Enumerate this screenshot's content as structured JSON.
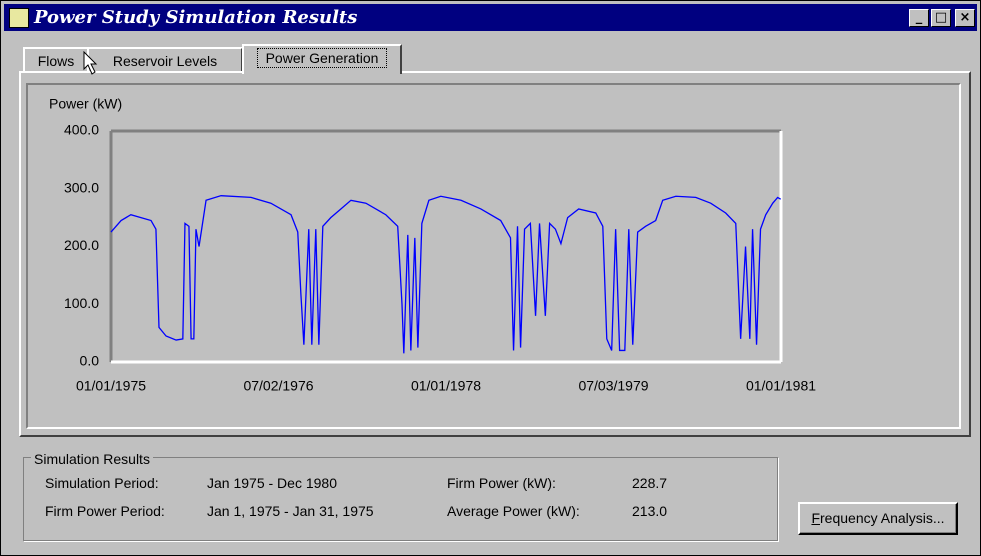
{
  "window": {
    "title": "Power Study Simulation Results"
  },
  "tabs": [
    "Flows",
    "Reservoir Levels",
    "Power Generation"
  ],
  "chart_data": {
    "type": "line",
    "ylabel": "Power (kW)",
    "color": "#0000ff",
    "x": [
      "01/01/1975",
      "02/03/1975",
      "03/07/1975",
      "04/09/1975",
      "05/12/1975",
      "05/28/1975",
      "06/07/1975",
      "06/30/1975",
      "08/02/1975",
      "08/24/1975",
      "08/31/1975",
      "09/13/1975",
      "09/20/1975",
      "09/29/1975",
      "10/06/1975",
      "10/16/1975",
      "11/08/1975",
      "12/27/1975",
      "04/03/1976",
      "06/07/1976",
      "08/12/1976",
      "09/03/1976",
      "09/13/1976",
      "09/23/1976",
      "10/09/1976",
      "10/19/1976",
      "11/01/1976",
      "11/11/1976",
      "11/24/1976",
      "12/20/1976",
      "01/22/1977",
      "02/24/1977",
      "04/14/1977",
      "06/18/1977",
      "07/27/1977",
      "08/10/1977",
      "08/16/1977",
      "08/29/1977",
      "09/08/1977",
      "09/21/1977",
      "10/01/1977",
      "10/14/1977",
      "11/06/1977",
      "12/15/1977",
      "02/19/1978",
      "04/25/1978",
      "06/29/1978",
      "07/31/1978",
      "08/10/1978",
      "08/23/1978",
      "09/02/1978",
      "09/15/1978",
      "10/04/1978",
      "10/21/1978",
      "11/03/1978",
      "11/22/1978",
      "12/06/1978",
      "12/25/1978",
      "01/12/1979",
      "02/03/1979",
      "03/11/1979",
      "05/06/1979",
      "05/29/1979",
      "06/11/1979",
      "06/27/1979",
      "07/10/1979",
      "07/23/1979",
      "08/09/1979",
      "08/22/1979",
      "09/04/1979",
      "09/20/1979",
      "10/16/1979",
      "11/18/1979",
      "12/11/1979",
      "01/23/1980",
      "03/28/1980",
      "05/16/1980",
      "07/04/1980",
      "08/06/1980",
      "08/22/1980",
      "09/07/1980",
      "09/21/1980",
      "09/30/1980",
      "10/13/1980",
      "10/26/1980",
      "11/12/1980",
      "12/05/1980",
      "12/21/1980",
      "12/31/1980"
    ],
    "values": [
      225,
      245,
      255,
      250,
      245,
      230,
      60,
      45,
      38,
      40,
      240,
      235,
      40,
      40,
      230,
      200,
      280,
      288,
      285,
      275,
      255,
      225,
      120,
      30,
      230,
      30,
      230,
      30,
      235,
      250,
      265,
      280,
      275,
      255,
      235,
      100,
      15,
      220,
      20,
      215,
      25,
      240,
      280,
      287,
      280,
      265,
      245,
      215,
      20,
      235,
      25,
      230,
      240,
      80,
      240,
      80,
      240,
      230,
      205,
      250,
      265,
      258,
      235,
      40,
      20,
      230,
      20,
      20,
      230,
      30,
      225,
      235,
      245,
      280,
      287,
      285,
      275,
      258,
      240,
      40,
      200,
      40,
      230,
      30,
      230,
      255,
      275,
      285,
      282
    ],
    "xlim": [
      "01/01/1975",
      "01/01/1981"
    ],
    "xticks": [
      "01/01/1975",
      "07/02/1976",
      "01/01/1978",
      "07/03/1979",
      "01/01/1981"
    ],
    "ylim": [
      0,
      400
    ],
    "yticks": [
      {
        "value": 0,
        "label": "0.0"
      },
      {
        "value": 100,
        "label": "100.0"
      },
      {
        "value": 200,
        "label": "200.0"
      },
      {
        "value": 300,
        "label": "300.0"
      },
      {
        "value": 400,
        "label": "400.0"
      }
    ]
  },
  "results": {
    "title": "Simulation Results",
    "rows": [
      [
        "Simulation Period:",
        "Jan 1975 - Dec 1980",
        "Firm Power (kW):",
        "228.7"
      ],
      [
        "Firm Power Period:",
        "Jan 1, 1975 - Jan 31, 1975",
        "Average Power (kW):",
        "213.0"
      ]
    ]
  },
  "button": "Frequency Analysis..."
}
